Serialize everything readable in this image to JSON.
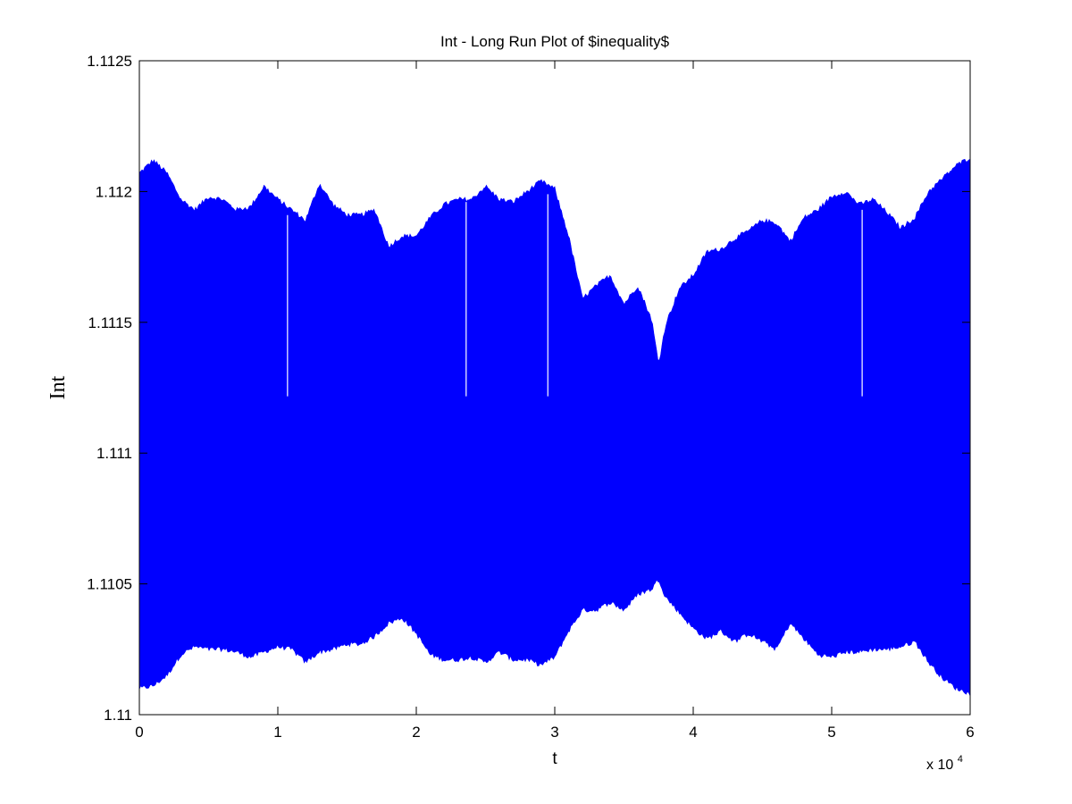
{
  "chart_data": {
    "type": "area",
    "title": "Int - Long Run Plot of $inequality$",
    "xlabel": "t",
    "ylabel": "Int",
    "x_multiplier": {
      "base": "x 10",
      "exponent": "4"
    },
    "xlim": [
      0,
      60000
    ],
    "ylim": [
      1.11,
      1.1125
    ],
    "x_ticks": [
      0,
      10000,
      20000,
      30000,
      40000,
      50000,
      60000
    ],
    "x_tick_labels": [
      "0",
      "1",
      "2",
      "3",
      "4",
      "5",
      "6"
    ],
    "y_ticks": [
      1.11,
      1.1105,
      1.111,
      1.1115,
      1.112,
      1.1125
    ],
    "y_tick_labels": [
      "1.11",
      "1.1105",
      "1.111",
      "1.1115",
      "1.112",
      "1.1125"
    ],
    "grid": false,
    "legend": "none",
    "series_color": "#0000ff",
    "series": [
      {
        "upper_envelope": {
          "x": [
            0,
            1000,
            2000,
            3000,
            4000,
            5000,
            6000,
            7000,
            8000,
            9000,
            10000,
            11000,
            12000,
            13000,
            14000,
            15000,
            16000,
            17000,
            18000,
            19000,
            20000,
            21000,
            22000,
            23000,
            24000,
            25000,
            26000,
            27000,
            28000,
            29000,
            30000,
            31000,
            32000,
            33000,
            34000,
            35000,
            36000,
            37000,
            37500,
            38000,
            39000,
            40000,
            41000,
            42000,
            43000,
            44000,
            45000,
            46000,
            47000,
            48000,
            49000,
            50000,
            51000,
            52000,
            53000,
            54000,
            55000,
            56000,
            57000,
            58000,
            59000,
            60000
          ],
          "y": [
            1.11207,
            1.11212,
            1.11207,
            1.11197,
            1.11193,
            1.11198,
            1.11197,
            1.11193,
            1.11194,
            1.11202,
            1.11197,
            1.11193,
            1.11189,
            1.11203,
            1.11195,
            1.11191,
            1.11191,
            1.11193,
            1.11179,
            1.11183,
            1.11183,
            1.1119,
            1.11195,
            1.11197,
            1.11197,
            1.11202,
            1.11197,
            1.11196,
            1.112,
            1.11204,
            1.11201,
            1.11183,
            1.11159,
            1.11164,
            1.11168,
            1.11157,
            1.11164,
            1.11151,
            1.11134,
            1.11149,
            1.11163,
            1.11168,
            1.11177,
            1.11178,
            1.11182,
            1.11185,
            1.11189,
            1.11188,
            1.11181,
            1.1119,
            1.11193,
            1.11198,
            1.112,
            1.11195,
            1.11197,
            1.11192,
            1.11186,
            1.1119,
            1.112,
            1.11205,
            1.1121,
            1.11213
          ]
        },
        "lower_envelope": {
          "x": [
            0,
            1000,
            2000,
            3000,
            4000,
            5000,
            6000,
            7000,
            8000,
            9000,
            10000,
            11000,
            12000,
            13000,
            14000,
            15000,
            16000,
            17000,
            18000,
            19000,
            20000,
            21000,
            22000,
            23000,
            24000,
            25000,
            26000,
            27000,
            28000,
            29000,
            30000,
            31000,
            32000,
            33000,
            34000,
            35000,
            36000,
            37000,
            37500,
            38000,
            39000,
            40000,
            41000,
            42000,
            43000,
            44000,
            45000,
            46000,
            47000,
            48000,
            49000,
            50000,
            51000,
            52000,
            53000,
            54000,
            55000,
            56000,
            57000,
            58000,
            59000,
            60000
          ],
          "y": [
            1.1101,
            1.11011,
            1.11015,
            1.11023,
            1.11026,
            1.11025,
            1.11025,
            1.11024,
            1.11022,
            1.11024,
            1.11026,
            1.11025,
            1.1102,
            1.11024,
            1.11025,
            1.11027,
            1.11027,
            1.1103,
            1.11035,
            1.11037,
            1.11031,
            1.11023,
            1.11021,
            1.11021,
            1.11022,
            1.1102,
            1.11024,
            1.11021,
            1.11021,
            1.11019,
            1.11022,
            1.11032,
            1.1104,
            1.1104,
            1.11043,
            1.1104,
            1.11046,
            1.11048,
            1.11052,
            1.11045,
            1.11039,
            1.11033,
            1.11029,
            1.11032,
            1.11028,
            1.11031,
            1.11028,
            1.11025,
            1.11035,
            1.11029,
            1.11023,
            1.11022,
            1.11024,
            1.11024,
            1.11025,
            1.11025,
            1.11026,
            1.11028,
            1.1102,
            1.11014,
            1.1101,
            1.11008
          ]
        },
        "gaps": [
          {
            "x": 10700,
            "y_from": 1.111217,
            "y_to": 1.11191
          },
          {
            "x": 23600,
            "y_from": 1.111217,
            "y_to": 1.11196
          },
          {
            "x": 29500,
            "y_from": 1.111217,
            "y_to": 1.11199
          },
          {
            "x": 52200,
            "y_from": 1.111217,
            "y_to": 1.11193
          }
        ]
      }
    ]
  }
}
